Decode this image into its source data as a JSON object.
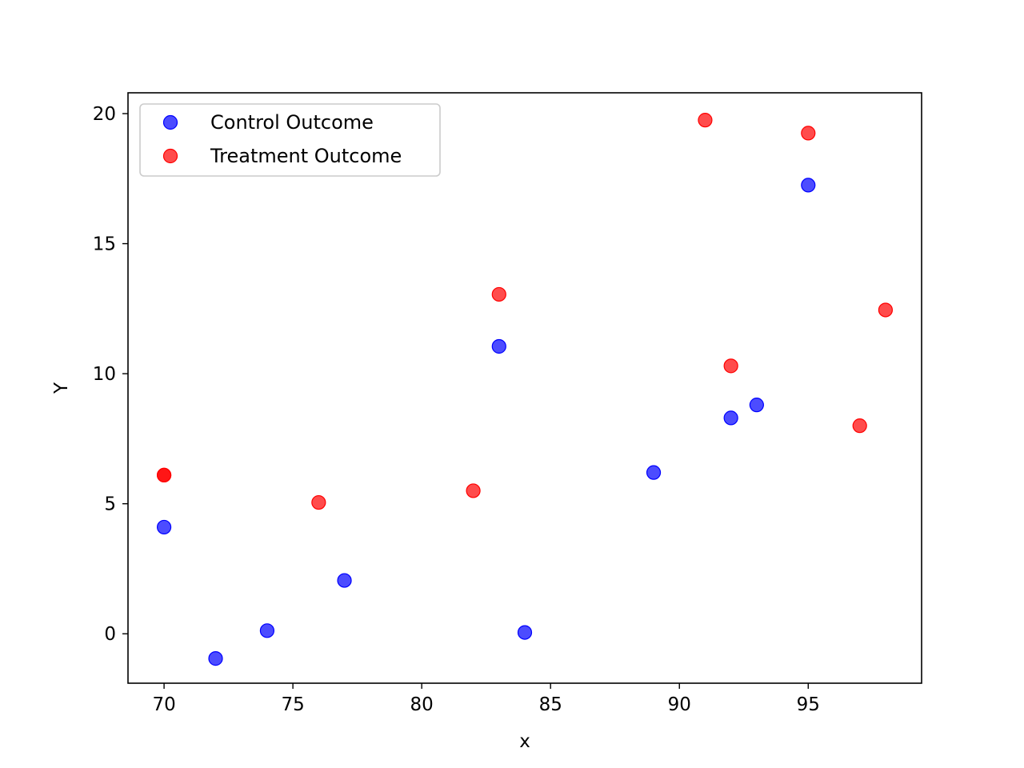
{
  "chart_data": {
    "type": "scatter",
    "title": "",
    "xlabel": "x",
    "ylabel": "Y",
    "xlim": [
      68.6,
      99.4
    ],
    "ylim": [
      -1.9,
      20.8
    ],
    "xticks": [
      70,
      75,
      80,
      85,
      90,
      95
    ],
    "yticks": [
      0,
      5,
      10,
      15,
      20
    ],
    "grid": false,
    "legend": "upper-left",
    "series": [
      {
        "name": "Control Outcome",
        "color": "#0000ff",
        "points": [
          {
            "x": 70,
            "y": 4.1
          },
          {
            "x": 72,
            "y": -0.95
          },
          {
            "x": 74,
            "y": 0.12
          },
          {
            "x": 77,
            "y": 2.05
          },
          {
            "x": 83,
            "y": 11.05
          },
          {
            "x": 84,
            "y": 0.05
          },
          {
            "x": 89,
            "y": 6.2
          },
          {
            "x": 92,
            "y": 8.3
          },
          {
            "x": 93,
            "y": 8.8
          },
          {
            "x": 95,
            "y": 17.25
          }
        ]
      },
      {
        "name": "Treatment Outcome",
        "color": "#ff0000",
        "points": [
          {
            "x": 70,
            "y": 6.1
          },
          {
            "x": 70,
            "y": 6.1
          },
          {
            "x": 76,
            "y": 5.05
          },
          {
            "x": 82,
            "y": 5.5
          },
          {
            "x": 83,
            "y": 13.05
          },
          {
            "x": 91,
            "y": 19.75
          },
          {
            "x": 92,
            "y": 10.3
          },
          {
            "x": 95,
            "y": 19.25
          },
          {
            "x": 97,
            "y": 8.0
          },
          {
            "x": 98,
            "y": 12.45
          }
        ]
      }
    ]
  }
}
